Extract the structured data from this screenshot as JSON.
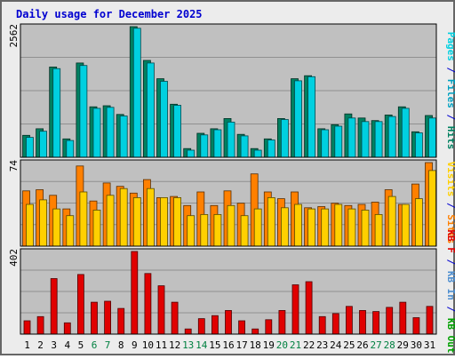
{
  "colors": {
    "background": "#ececec",
    "panel": "#c0c0c0",
    "title": "#0000d0",
    "pages": "#00d0e0",
    "files": "#00a0c0",
    "hits": "#008060",
    "visits": "#ffd000",
    "sites": "#ff8000",
    "kb_in": "#4f8fd0",
    "kb_out": "#00a000",
    "kb_f": "#e00000",
    "weekend_label": "#008040"
  },
  "chart_data": {
    "type": "bar",
    "title": "Daily usage for December 2025",
    "categories": [
      "1",
      "2",
      "3",
      "4",
      "5",
      "6",
      "7",
      "8",
      "9",
      "10",
      "11",
      "12",
      "13",
      "14",
      "15",
      "16",
      "17",
      "18",
      "19",
      "20",
      "21",
      "22",
      "23",
      "24",
      "25",
      "26",
      "27",
      "28",
      "29",
      "30",
      "31"
    ],
    "weekend_days": [
      "6",
      "7",
      "13",
      "14",
      "20",
      "21",
      "27",
      "28"
    ],
    "panels": [
      {
        "id": "pages-files-hits",
        "axis_max_label": "2562",
        "ymax": 2562,
        "legend": [
          {
            "text": "Pages",
            "color_key": "pages"
          },
          {
            "text": " / ",
            "color_key": "title"
          },
          {
            "text": "Files",
            "color_key": "files"
          },
          {
            "text": " / ",
            "color_key": "title"
          },
          {
            "text": "Hits",
            "color_key": "hits"
          }
        ],
        "series": [
          {
            "key": "hits",
            "values": [
              430,
              560,
              1770,
              360,
              1850,
              990,
              1010,
              840,
              2562,
              1900,
              1540,
              1040,
              170,
              470,
              560,
              760,
              450,
              170,
              360,
              760,
              1540,
              1600,
              560,
              640,
              850,
              770,
              720,
              830,
              990,
              500,
              820
            ]
          },
          {
            "key": "pages",
            "values": [
              390,
              510,
              1740,
              330,
              1800,
              960,
              980,
              810,
              2530,
              1850,
              1490,
              1020,
              140,
              440,
              540,
              690,
              420,
              140,
              340,
              740,
              1500,
              1580,
              540,
              610,
              770,
              700,
              700,
              800,
              960,
              480,
              770
            ]
          }
        ]
      },
      {
        "id": "visits-sites",
        "axis_max_label": "74",
        "ymax": 74,
        "legend": [
          {
            "text": "Visits",
            "color_key": "visits"
          },
          {
            "text": " / ",
            "color_key": "title"
          },
          {
            "text": "Sites",
            "color_key": "sites"
          }
        ],
        "series": [
          {
            "key": "sites",
            "values": [
              49,
              50,
              45,
              33,
              71,
              40,
              56,
              53,
              47,
              59,
              43,
              44,
              36,
              48,
              36,
              49,
              38,
              64,
              48,
              42,
              48,
              34,
              35,
              38,
              36,
              37,
              39,
              50,
              37,
              55,
              74
            ]
          },
          {
            "key": "visits",
            "values": [
              37,
              41,
              33,
              27,
              48,
              32,
              45,
              51,
              43,
              51,
              43,
              43,
              27,
              28,
              28,
              36,
              27,
              33,
              43,
              34,
              37,
              33,
              33,
              37,
              33,
              32,
              28,
              44,
              37,
              42,
              67
            ]
          }
        ]
      },
      {
        "id": "kbytes",
        "axis_max_label": "402",
        "ymax": 402,
        "legend": [
          {
            "text": "KB F",
            "color_key": "kb_f"
          },
          {
            "text": " / ",
            "color_key": "title"
          },
          {
            "text": "KB In",
            "color_key": "kb_in"
          },
          {
            "text": " / ",
            "color_key": "title"
          },
          {
            "text": "KB Out",
            "color_key": "kb_out"
          }
        ],
        "series": [
          {
            "key": "kb_f",
            "values": [
              65,
              85,
              270,
              55,
              290,
              155,
              160,
              125,
              402,
              295,
              235,
              155,
              25,
              75,
              90,
              115,
              65,
              25,
              70,
              115,
              240,
              255,
              85,
              100,
              135,
              115,
              110,
              130,
              155,
              80,
              135
            ]
          }
        ]
      }
    ]
  }
}
